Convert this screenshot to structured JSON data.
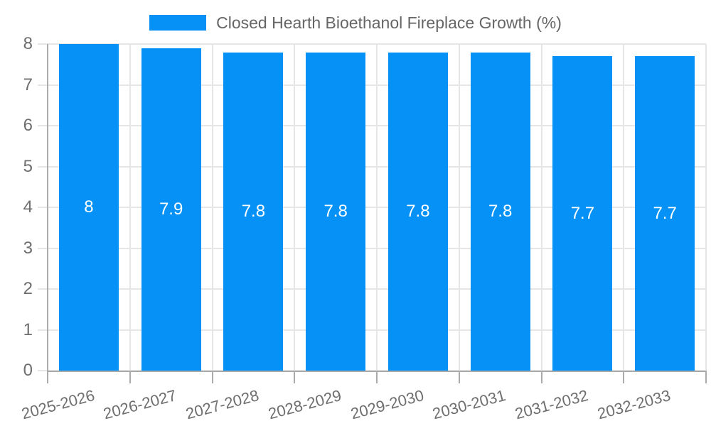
{
  "chart_data": {
    "type": "bar",
    "title": "Closed Hearth Bioethanol Fireplace Growth (%)",
    "categories": [
      "2025-2026",
      "2026-2027",
      "2027-2028",
      "2028-2029",
      "2029-2030",
      "2030-2031",
      "2031-2032",
      "2032-2033"
    ],
    "values": [
      8,
      7.9,
      7.8,
      7.8,
      7.8,
      7.8,
      7.7,
      7.7
    ],
    "value_labels": [
      "8",
      "7.9",
      "7.8",
      "7.8",
      "7.8",
      "7.8",
      "7.7",
      "7.7"
    ],
    "xlabel": "",
    "ylabel": "",
    "ylim": [
      0,
      8
    ],
    "yticks": [
      0,
      1,
      2,
      3,
      4,
      5,
      6,
      7,
      8
    ],
    "grid": true,
    "legend_position": "top",
    "x_label_rotation_deg": -15,
    "colors": {
      "bar": "#0591f5",
      "grid_line": "#e6e6e6",
      "axis_line": "#ababab",
      "tick_label": "#6e6e6e",
      "legend_label": "#666666",
      "value_label": "#ffffff",
      "background": "#ffffff"
    }
  }
}
